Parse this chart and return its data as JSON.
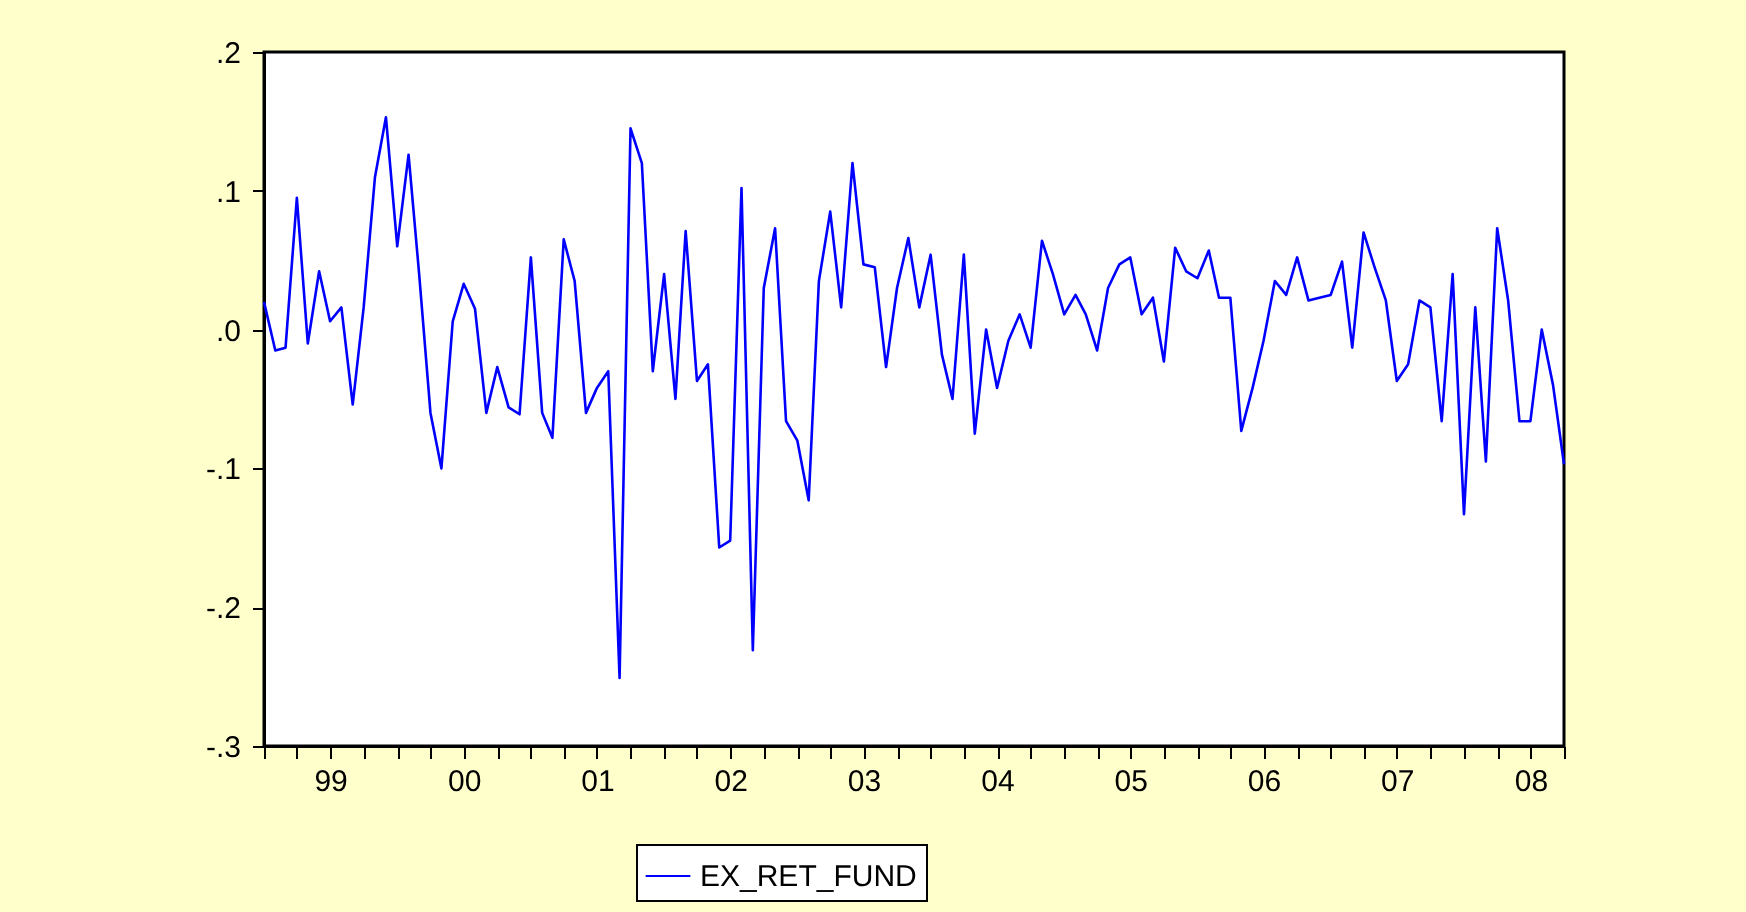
{
  "chart_data": {
    "type": "line",
    "x": [
      "1999-01",
      "1999-02",
      "1999-03",
      "1999-04",
      "1999-05",
      "1999-06",
      "1999-07",
      "1999-08",
      "1999-09",
      "1999-10",
      "1999-11",
      "1999-12",
      "2000-01",
      "2000-02",
      "2000-03",
      "2000-04",
      "2000-05",
      "2000-06",
      "2000-07",
      "2000-08",
      "2000-09",
      "2000-10",
      "2000-11",
      "2000-12",
      "2001-01",
      "2001-02",
      "2001-03",
      "2001-04",
      "2001-05",
      "2001-06",
      "2001-07",
      "2001-08",
      "2001-09",
      "2001-10",
      "2001-11",
      "2001-12",
      "2002-01",
      "2002-02",
      "2002-03",
      "2002-04",
      "2002-05",
      "2002-06",
      "2002-07",
      "2002-08",
      "2002-09",
      "2002-10",
      "2002-11",
      "2002-12",
      "2003-01",
      "2003-02",
      "2003-03",
      "2003-04",
      "2003-05",
      "2003-06",
      "2003-07",
      "2003-08",
      "2003-09",
      "2003-10",
      "2003-11",
      "2003-12",
      "2004-01",
      "2004-02",
      "2004-03",
      "2004-04",
      "2004-05",
      "2004-06",
      "2004-07",
      "2004-08",
      "2004-09",
      "2004-10",
      "2004-11",
      "2004-12",
      "2005-01",
      "2005-02",
      "2005-03",
      "2005-04",
      "2005-05",
      "2005-06",
      "2005-07",
      "2005-08",
      "2005-09",
      "2005-10",
      "2005-11",
      "2005-12",
      "2006-01",
      "2006-02",
      "2006-03",
      "2006-04",
      "2006-05",
      "2006-06",
      "2006-07",
      "2006-08",
      "2006-09",
      "2006-10",
      "2006-11",
      "2006-12",
      "2007-01",
      "2007-02",
      "2007-03",
      "2007-04",
      "2007-05",
      "2007-06",
      "2007-07",
      "2007-08",
      "2007-09",
      "2007-10",
      "2007-11",
      "2007-12",
      "2008-01",
      "2008-02",
      "2008-03",
      "2008-04",
      "2008-05",
      "2008-06",
      "2008-07",
      "2008-08",
      "2008-09",
      "2008-10"
    ],
    "series": [
      {
        "name": "EX_RET_FUND",
        "color": "#0000ff",
        "values": [
          0.02,
          -0.015,
          -0.013,
          0.095,
          -0.01,
          0.042,
          0.006,
          0.016,
          -0.054,
          0.016,
          0.11,
          0.153,
          0.06,
          0.126,
          0.04,
          -0.06,
          -0.1,
          0.006,
          0.033,
          0.015,
          -0.06,
          -0.027,
          -0.056,
          -0.061,
          0.052,
          -0.06,
          -0.078,
          0.065,
          0.035,
          -0.06,
          -0.042,
          -0.03,
          -0.251,
          0.145,
          0.12,
          -0.03,
          0.04,
          -0.05,
          0.071,
          -0.037,
          -0.025,
          -0.157,
          -0.152,
          0.102,
          -0.231,
          0.03,
          0.073,
          -0.066,
          -0.08,
          -0.123,
          0.035,
          0.085,
          0.016,
          0.12,
          0.047,
          0.045,
          -0.027,
          0.03,
          0.066,
          0.016,
          0.054,
          -0.018,
          -0.05,
          0.054,
          -0.075,
          0.0,
          -0.042,
          -0.008,
          0.011,
          -0.013,
          0.064,
          0.04,
          0.011,
          0.025,
          0.011,
          -0.015,
          0.03,
          0.047,
          0.052,
          0.011,
          0.023,
          -0.023,
          0.059,
          0.042,
          0.037,
          0.057,
          0.023,
          0.023,
          -0.073,
          -0.042,
          -0.008,
          0.035,
          0.025,
          0.052,
          0.021,
          0.023,
          0.025,
          0.049,
          -0.013,
          0.07,
          0.045,
          0.021,
          -0.037,
          -0.025,
          0.021,
          0.016,
          -0.066,
          0.04,
          -0.133,
          0.016,
          -0.095,
          0.073,
          0.021,
          -0.066,
          -0.066,
          0.0,
          -0.04,
          -0.097
        ]
      }
    ],
    "xlim": [
      "1999-01",
      "2008-10"
    ],
    "xticks": [
      {
        "value": "1999-01",
        "label": null
      },
      {
        "value": "1999-04",
        "label": null
      },
      {
        "value": "1999-07",
        "label": "99"
      },
      {
        "value": "1999-10",
        "label": null
      },
      {
        "value": "2000-01",
        "label": null
      },
      {
        "value": "2000-04",
        "label": null
      },
      {
        "value": "2000-07",
        "label": "00"
      },
      {
        "value": "2000-10",
        "label": null
      },
      {
        "value": "2001-01",
        "label": null
      },
      {
        "value": "2001-04",
        "label": null
      },
      {
        "value": "2001-07",
        "label": "01"
      },
      {
        "value": "2001-10",
        "label": null
      },
      {
        "value": "2002-01",
        "label": null
      },
      {
        "value": "2002-04",
        "label": null
      },
      {
        "value": "2002-07",
        "label": "02"
      },
      {
        "value": "2002-10",
        "label": null
      },
      {
        "value": "2003-01",
        "label": null
      },
      {
        "value": "2003-04",
        "label": null
      },
      {
        "value": "2003-07",
        "label": "03"
      },
      {
        "value": "2003-10",
        "label": null
      },
      {
        "value": "2004-01",
        "label": null
      },
      {
        "value": "2004-04",
        "label": null
      },
      {
        "value": "2004-07",
        "label": "04"
      },
      {
        "value": "2004-10",
        "label": null
      },
      {
        "value": "2005-01",
        "label": null
      },
      {
        "value": "2005-04",
        "label": null
      },
      {
        "value": "2005-07",
        "label": "05"
      },
      {
        "value": "2005-10",
        "label": null
      },
      {
        "value": "2006-01",
        "label": null
      },
      {
        "value": "2006-04",
        "label": null
      },
      {
        "value": "2006-07",
        "label": "06"
      },
      {
        "value": "2006-10",
        "label": null
      },
      {
        "value": "2007-01",
        "label": null
      },
      {
        "value": "2007-04",
        "label": null
      },
      {
        "value": "2007-07",
        "label": "07"
      },
      {
        "value": "2007-10",
        "label": null
      },
      {
        "value": "2008-01",
        "label": null
      },
      {
        "value": "2008-04",
        "label": null
      },
      {
        "value": "2008-07",
        "label": "08"
      },
      {
        "value": "2008-10",
        "label": null
      }
    ],
    "ylim": [
      -0.3,
      0.2
    ],
    "yticks": [
      {
        "value": 0.2,
        "label": ".2"
      },
      {
        "value": 0.1,
        "label": ".1"
      },
      {
        "value": 0,
        "label": ".0"
      },
      {
        "value": -0.1,
        "label": "-.1"
      },
      {
        "value": -0.2,
        "label": "-.2"
      },
      {
        "value": -0.3,
        "label": "-.3"
      }
    ],
    "legend": "bottom"
  }
}
